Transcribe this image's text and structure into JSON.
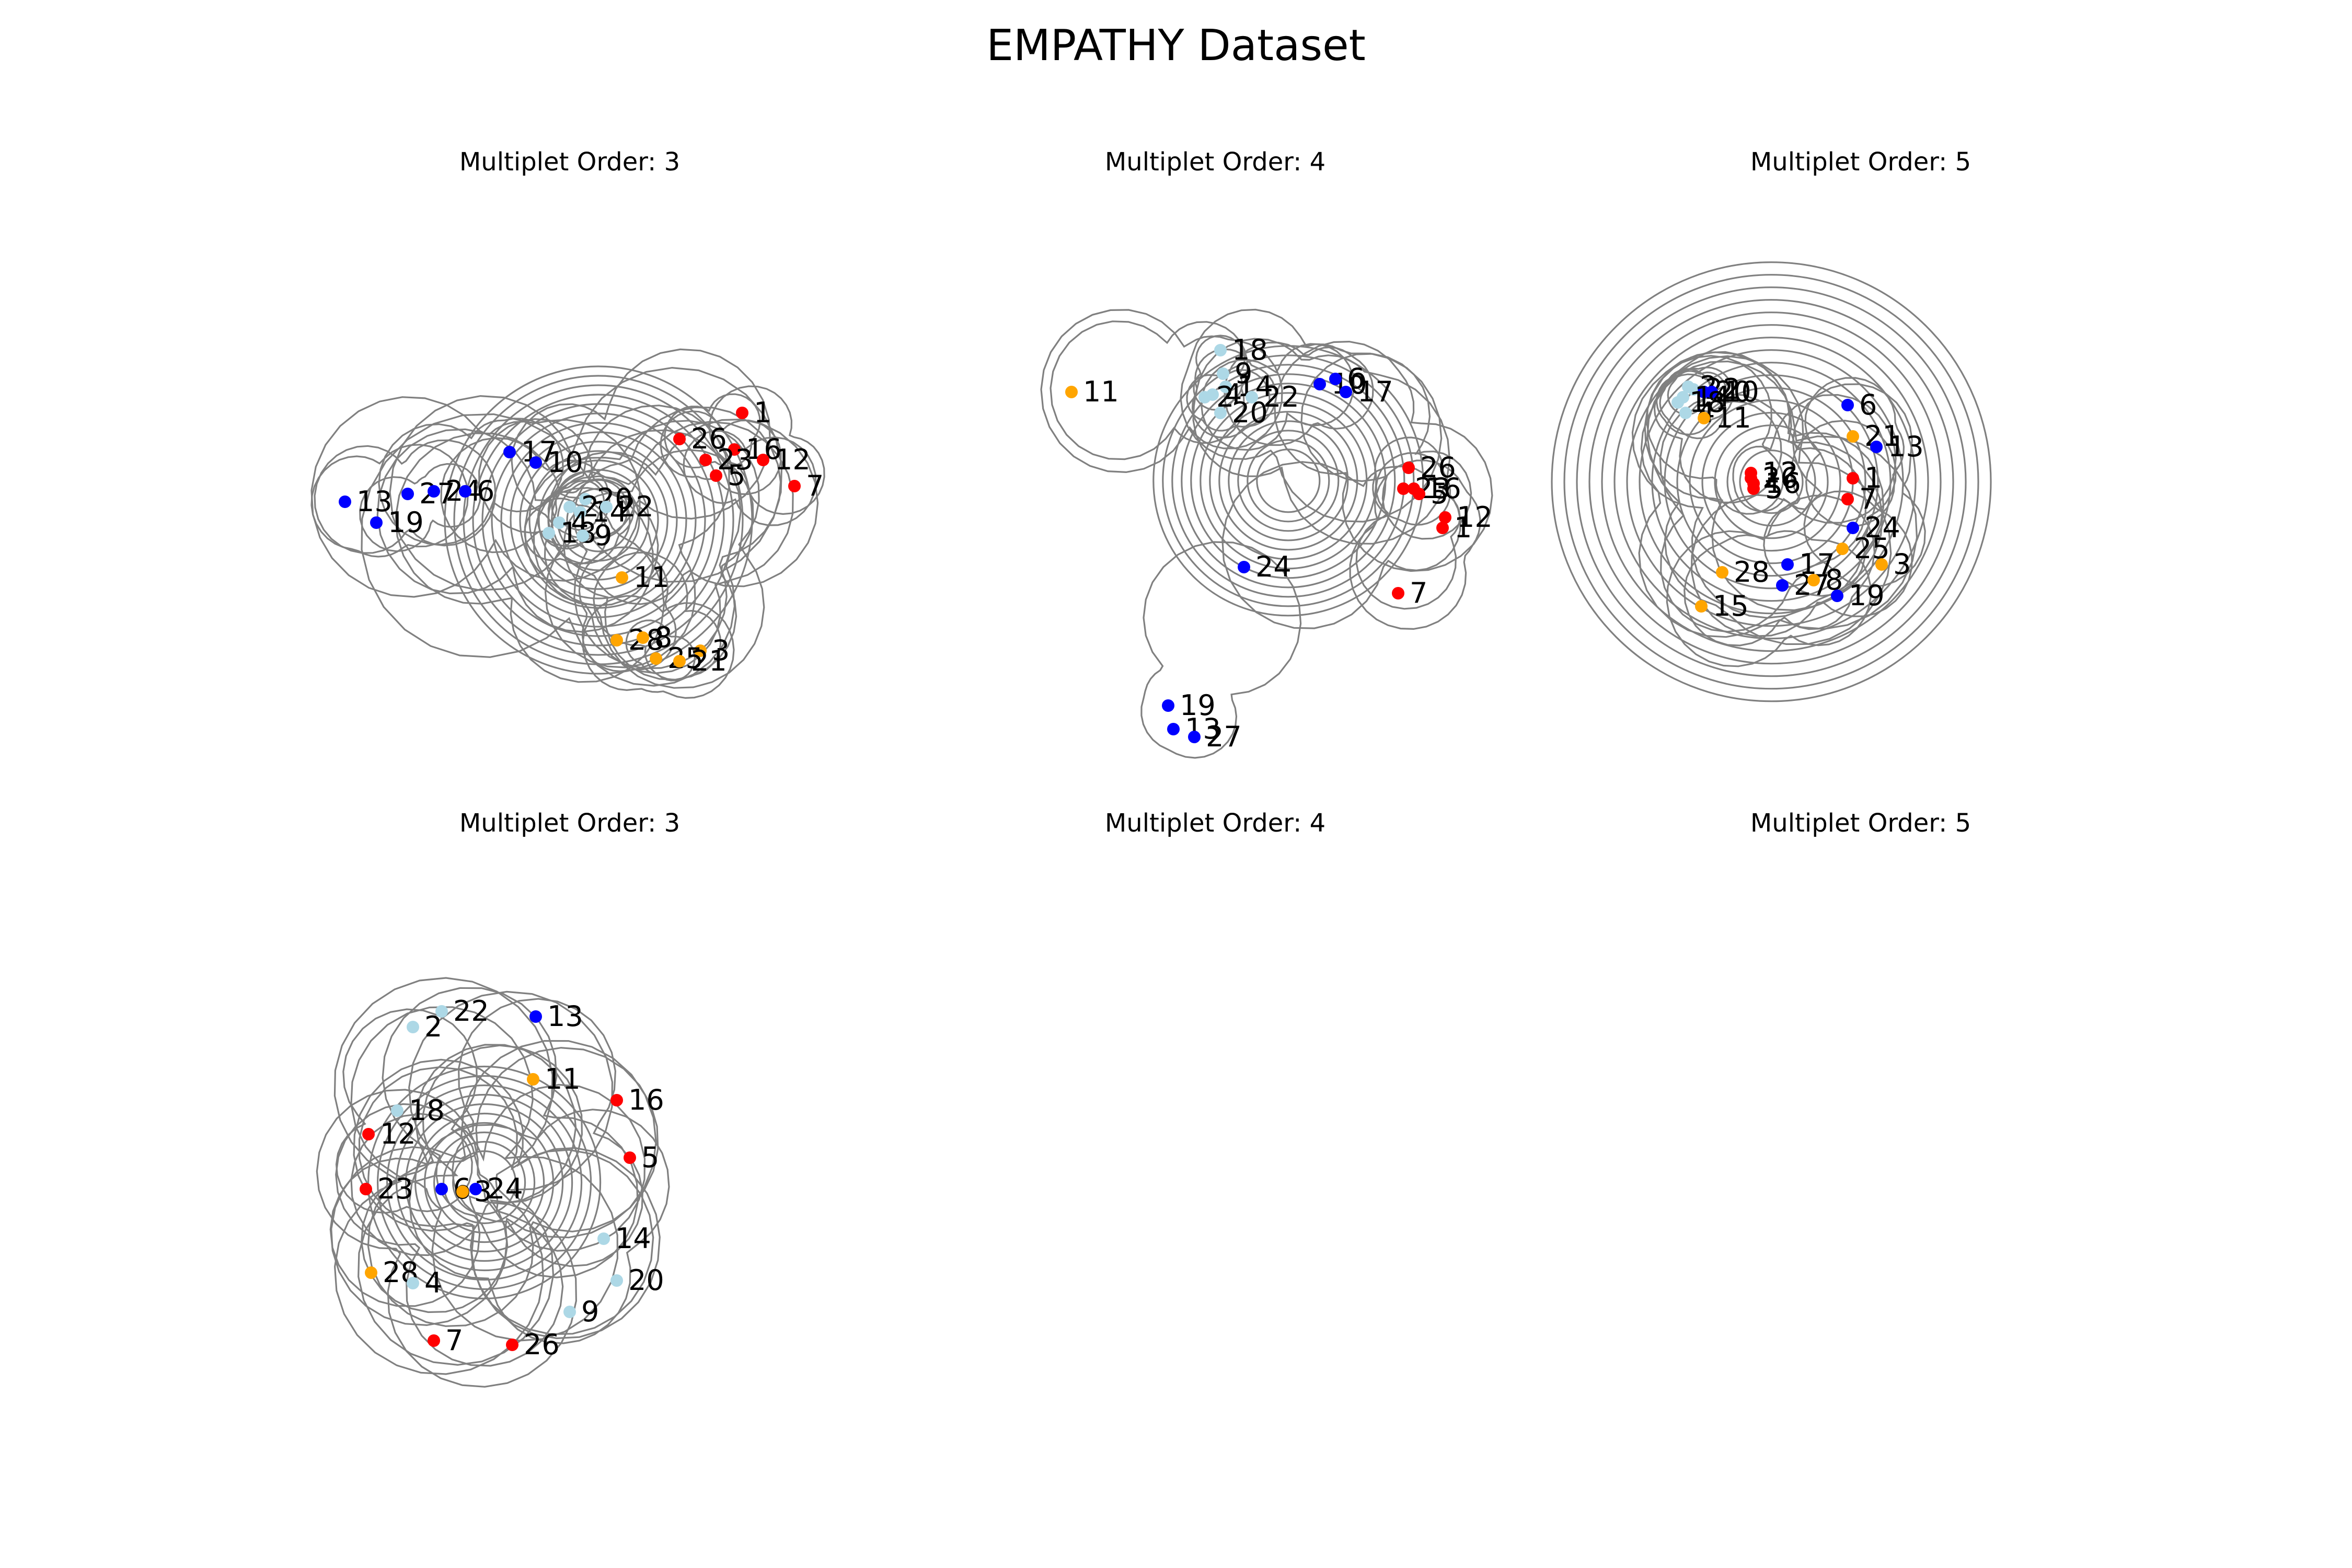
{
  "figure": {
    "title": "EMPATHY Dataset",
    "edge_color": "#808080",
    "colors": {
      "red": "#ff0000",
      "blue": "#0000ff",
      "lightblue": "#add8e6",
      "orange": "#ffa500"
    }
  },
  "panels": [
    {
      "title": "Multiplet Order: 3",
      "nodes": [
        {
          "id": "1",
          "color": "red"
        },
        {
          "id": "26",
          "color": "red"
        },
        {
          "id": "16",
          "color": "red"
        },
        {
          "id": "23",
          "color": "red"
        },
        {
          "id": "12",
          "color": "red"
        },
        {
          "id": "5",
          "color": "red"
        },
        {
          "id": "7",
          "color": "red"
        },
        {
          "id": "17",
          "color": "blue"
        },
        {
          "id": "10",
          "color": "blue"
        },
        {
          "id": "13",
          "color": "blue"
        },
        {
          "id": "27",
          "color": "blue"
        },
        {
          "id": "24",
          "color": "blue"
        },
        {
          "id": "6",
          "color": "blue"
        },
        {
          "id": "19",
          "color": "blue"
        },
        {
          "id": "20",
          "color": "lightblue"
        },
        {
          "id": "2",
          "color": "lightblue"
        },
        {
          "id": "14",
          "color": "lightblue"
        },
        {
          "id": "22",
          "color": "lightblue"
        },
        {
          "id": "4",
          "color": "lightblue"
        },
        {
          "id": "18",
          "color": "lightblue"
        },
        {
          "id": "9",
          "color": "lightblue"
        },
        {
          "id": "11",
          "color": "orange"
        },
        {
          "id": "28",
          "color": "orange"
        },
        {
          "id": "8",
          "color": "orange"
        },
        {
          "id": "3",
          "color": "orange"
        },
        {
          "id": "25",
          "color": "orange"
        },
        {
          "id": "21",
          "color": "orange"
        }
      ]
    },
    {
      "title": "Multiplet Order: 4",
      "nodes": [
        {
          "id": "18",
          "color": "lightblue"
        },
        {
          "id": "9",
          "color": "lightblue"
        },
        {
          "id": "14",
          "color": "lightblue"
        },
        {
          "id": "4",
          "color": "lightblue"
        },
        {
          "id": "2",
          "color": "lightblue"
        },
        {
          "id": "22",
          "color": "lightblue"
        },
        {
          "id": "20",
          "color": "lightblue"
        },
        {
          "id": "11",
          "color": "orange"
        },
        {
          "id": "10",
          "color": "blue"
        },
        {
          "id": "6",
          "color": "blue"
        },
        {
          "id": "17",
          "color": "blue"
        },
        {
          "id": "26",
          "color": "red"
        },
        {
          "id": "23",
          "color": "red"
        },
        {
          "id": "16",
          "color": "red"
        },
        {
          "id": "5",
          "color": "red"
        },
        {
          "id": "12",
          "color": "red"
        },
        {
          "id": "1",
          "color": "red"
        },
        {
          "id": "7",
          "color": "red"
        },
        {
          "id": "24",
          "color": "blue"
        },
        {
          "id": "19",
          "color": "blue"
        },
        {
          "id": "13",
          "color": "blue"
        },
        {
          "id": "27",
          "color": "blue"
        }
      ]
    },
    {
      "title": "Multiplet Order: 5",
      "nodes": [
        {
          "id": "2",
          "color": "lightblue"
        },
        {
          "id": "22",
          "color": "lightblue"
        },
        {
          "id": "20",
          "color": "blue"
        },
        {
          "id": "10",
          "color": "blue"
        },
        {
          "id": "14",
          "color": "lightblue"
        },
        {
          "id": "18",
          "color": "lightblue"
        },
        {
          "id": "4",
          "color": "lightblue"
        },
        {
          "id": "11",
          "color": "orange"
        },
        {
          "id": "12",
          "color": "red"
        },
        {
          "id": "26",
          "color": "red"
        },
        {
          "id": "16",
          "color": "red"
        },
        {
          "id": "5",
          "color": "red"
        },
        {
          "id": "6",
          "color": "blue"
        },
        {
          "id": "21",
          "color": "orange"
        },
        {
          "id": "13",
          "color": "blue"
        },
        {
          "id": "1",
          "color": "red"
        },
        {
          "id": "7",
          "color": "red"
        },
        {
          "id": "24",
          "color": "blue"
        },
        {
          "id": "25",
          "color": "orange"
        },
        {
          "id": "3",
          "color": "orange"
        },
        {
          "id": "28",
          "color": "orange"
        },
        {
          "id": "17",
          "color": "blue"
        },
        {
          "id": "27",
          "color": "blue"
        },
        {
          "id": "8",
          "color": "orange"
        },
        {
          "id": "19",
          "color": "blue"
        },
        {
          "id": "15",
          "color": "orange"
        }
      ]
    },
    {
      "title": "Multiplet Order: 3",
      "nodes": [
        {
          "id": "2",
          "color": "lightblue"
        },
        {
          "id": "22",
          "color": "lightblue"
        },
        {
          "id": "13",
          "color": "blue"
        },
        {
          "id": "11",
          "color": "orange"
        },
        {
          "id": "16",
          "color": "red"
        },
        {
          "id": "18",
          "color": "lightblue"
        },
        {
          "id": "12",
          "color": "red"
        },
        {
          "id": "5",
          "color": "red"
        },
        {
          "id": "6",
          "color": "blue"
        },
        {
          "id": "3",
          "color": "orange"
        },
        {
          "id": "24",
          "color": "blue"
        },
        {
          "id": "23",
          "color": "red"
        },
        {
          "id": "14",
          "color": "lightblue"
        },
        {
          "id": "28",
          "color": "orange"
        },
        {
          "id": "20",
          "color": "lightblue"
        },
        {
          "id": "4",
          "color": "lightblue"
        },
        {
          "id": "9",
          "color": "lightblue"
        },
        {
          "id": "7",
          "color": "red"
        },
        {
          "id": "26",
          "color": "red"
        }
      ]
    },
    {
      "title": "Multiplet Order: 4",
      "nodes": []
    },
    {
      "title": "Multiplet Order: 5",
      "nodes": []
    }
  ]
}
